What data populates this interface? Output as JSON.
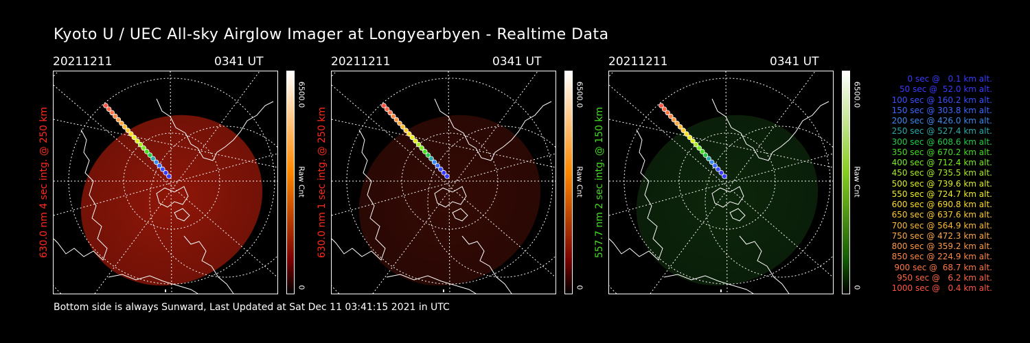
{
  "title": "Kyoto U / UEC All-sky Airglow Imager at Longyearbyen - Realtime Data",
  "footer": "Bottom side is always Sunward, Last Updated at Sat Dec 11 03:41:15 2021 in UTC",
  "panels": [
    {
      "date": "20211211",
      "time": "0341 UT",
      "label": "630.0 nm 4 sec intg. @ 250 km",
      "label_color": "#ff2a1a",
      "colorbar_max": "6500.0",
      "colorbar_name": "Raw Cnt",
      "colorbar_min": "0",
      "image_color": "#a81a0a",
      "image_intensity": 0.85,
      "colorbar_top": "#ffffff",
      "colorbar_mid": "#ff8800",
      "colorbar_bottom": "#7a0000"
    },
    {
      "date": "20211211",
      "time": "0341 UT",
      "label": "630.0 nm 1 sec intg. @ 250 km",
      "label_color": "#ff2a1a",
      "colorbar_max": "6500.0",
      "colorbar_name": "Raw Cnt",
      "colorbar_min": "0",
      "image_color": "#3a0b05",
      "image_intensity": 0.9,
      "colorbar_top": "#ffffff",
      "colorbar_mid": "#ff8800",
      "colorbar_bottom": "#7a0000"
    },
    {
      "date": "20211211",
      "time": "0341 UT",
      "label": "557.7 nm 2 sec intg. @ 150 km",
      "label_color": "#44dd22",
      "colorbar_max": "6500.0",
      "colorbar_name": "Raw Cnt",
      "colorbar_min": "0",
      "image_color": "#0e2a0c",
      "image_intensity": 0.9,
      "colorbar_top": "#ffffff",
      "colorbar_mid": "#88cc22",
      "colorbar_bottom": "#145a05"
    }
  ],
  "legend": [
    {
      "text": "0 sec @   0.1 km alt.",
      "color": "#3a3aff"
    },
    {
      "text": "50 sec @  52.0 km alt.",
      "color": "#3a3aff"
    },
    {
      "text": "100 sec @ 160.2 km alt.",
      "color": "#3a50ff"
    },
    {
      "text": "150 sec @ 303.8 km alt.",
      "color": "#3a6aff"
    },
    {
      "text": "200 sec @ 426.0 km alt.",
      "color": "#3a8aee"
    },
    {
      "text": "250 sec @ 527.4 km alt.",
      "color": "#2aaaaa"
    },
    {
      "text": "300 sec @ 608.6 km alt.",
      "color": "#22cc44"
    },
    {
      "text": "350 sec @ 670.2 km alt.",
      "color": "#44dd22"
    },
    {
      "text": "400 sec @ 712.4 km alt.",
      "color": "#77ee22"
    },
    {
      "text": "450 sec @ 735.5 km alt.",
      "color": "#aaee22"
    },
    {
      "text": "500 sec @ 739.6 km alt.",
      "color": "#ddee22"
    },
    {
      "text": "550 sec @ 724.7 km alt.",
      "color": "#eeee22"
    },
    {
      "text": "600 sec @ 690.8 km alt.",
      "color": "#ffdd22"
    },
    {
      "text": "650 sec @ 637.6 km alt.",
      "color": "#ffcc33"
    },
    {
      "text": "700 sec @ 564.9 km alt.",
      "color": "#ffbb33"
    },
    {
      "text": "750 sec @ 472.3 km alt.",
      "color": "#ffaa44"
    },
    {
      "text": "800 sec @ 359.2 km alt.",
      "color": "#ff9944"
    },
    {
      "text": "850 sec @ 224.9 km alt.",
      "color": "#ff8844"
    },
    {
      "text": "900 sec @  68.7 km alt.",
      "color": "#ff7744"
    },
    {
      "text": "950 sec @   6.2 km alt.",
      "color": "#ff6644"
    },
    {
      "text": "1000 sec @   0.4 km alt.",
      "color": "#ff5544"
    }
  ]
}
